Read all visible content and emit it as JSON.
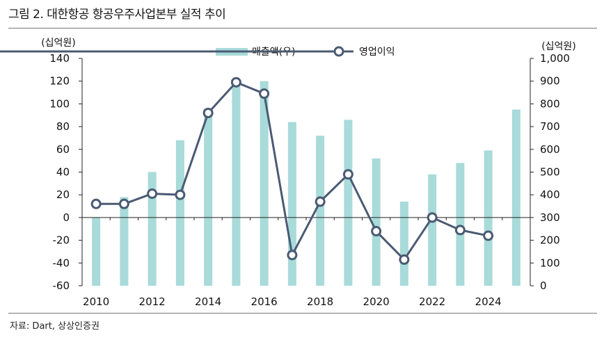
{
  "figure": {
    "title": "그림 2. 대한항공 항공우주사업본부 실적 추이",
    "source": "자료: Dart, 상상인증권"
  },
  "chart_data": {
    "type": "bar+line",
    "left_axis_unit": "(십억원)",
    "right_axis_unit": "(십억원)",
    "left_ylim": [
      -60,
      140
    ],
    "left_ticks": [
      -60,
      -40,
      -20,
      0,
      20,
      40,
      60,
      80,
      100,
      120,
      140
    ],
    "right_ylim": [
      0,
      1000
    ],
    "right_ticks": [
      0,
      100,
      200,
      300,
      400,
      500,
      600,
      700,
      800,
      900,
      1000
    ],
    "right_tick_labels": [
      "0",
      "100",
      "200",
      "300",
      "400",
      "500",
      "600",
      "700",
      "800",
      "900",
      "1,000"
    ],
    "x_categories": [
      2010,
      2011,
      2012,
      2013,
      2014,
      2015,
      2016,
      2017,
      2018,
      2019,
      2020,
      2021,
      2022,
      2023,
      2024,
      2025
    ],
    "x_tick_labels": [
      "2010",
      "",
      "2012",
      "",
      "2014",
      "",
      "2016",
      "",
      "2018",
      "",
      "2020",
      "",
      "2022",
      "",
      "2024",
      ""
    ],
    "series": [
      {
        "name": "매출액(우)",
        "kind": "bar",
        "axis": "right",
        "color": "#a8dbd9",
        "values": [
          300,
          390,
          500,
          640,
          780,
          900,
          900,
          720,
          660,
          730,
          560,
          370,
          490,
          540,
          595,
          775
        ]
      },
      {
        "name": "영업이익",
        "kind": "line",
        "axis": "left",
        "color": "#4a5a73",
        "values": [
          12,
          12,
          21,
          20,
          92,
          119,
          109,
          -33,
          14,
          38,
          -12,
          -37,
          0,
          -11,
          -16,
          null
        ]
      }
    ],
    "legend_position": "top-center",
    "grid": false
  }
}
